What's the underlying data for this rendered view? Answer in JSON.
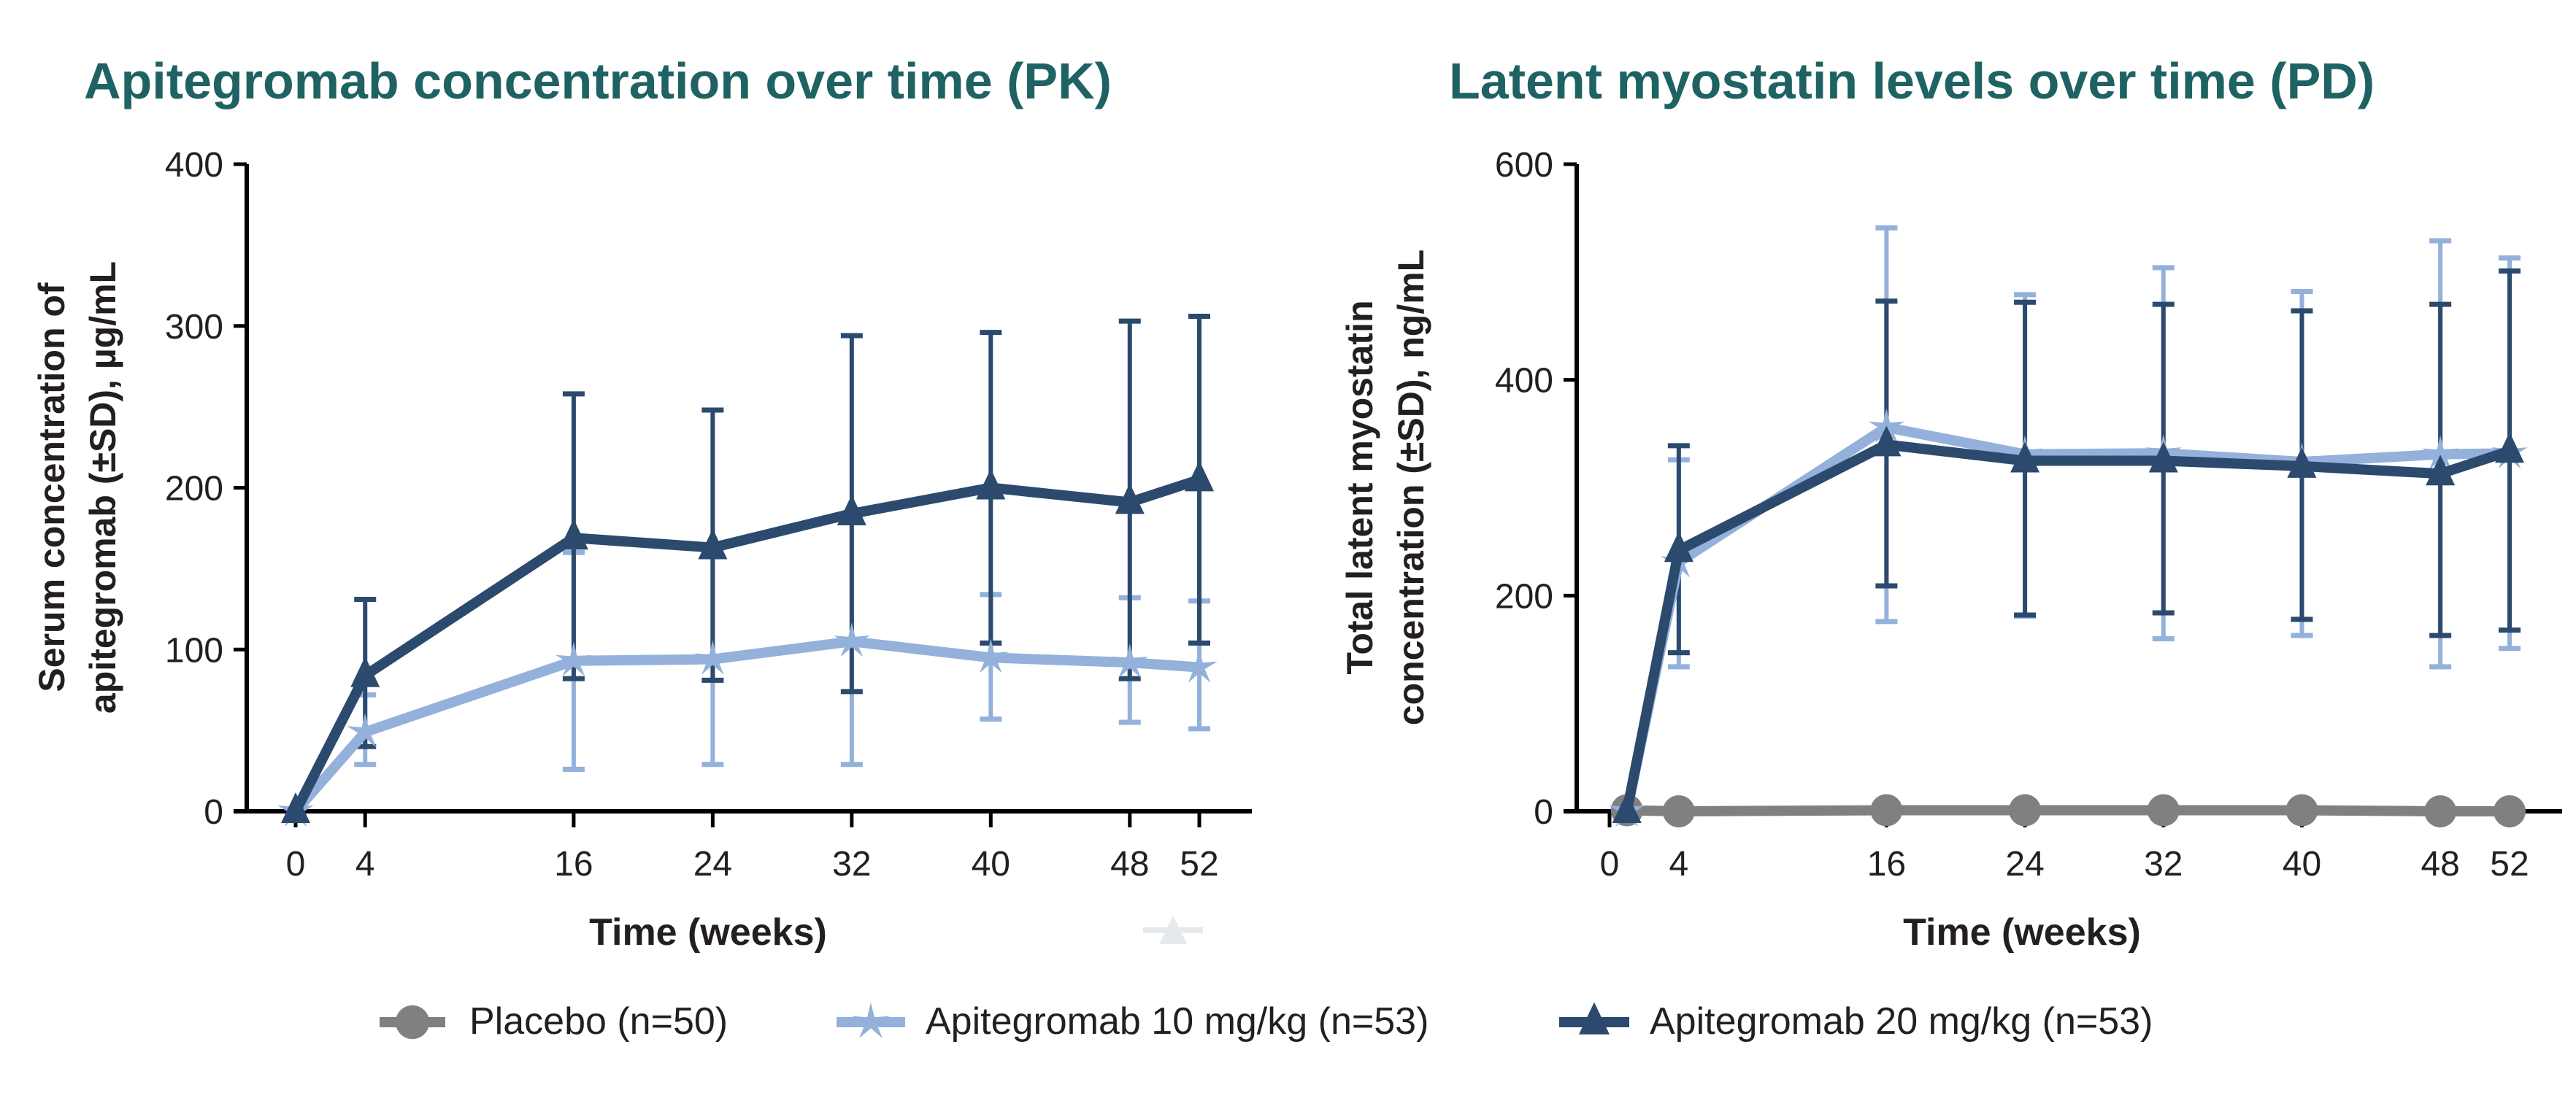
{
  "chart_data": [
    {
      "type": "line",
      "title": "Apitegromab concentration over time (PK)",
      "xlabel": "Time (weeks)",
      "ylabel": [
        "Serum concentration of",
        "apitegromab (±SD), µg/mL"
      ],
      "xticks": [
        0,
        4,
        16,
        24,
        32,
        40,
        48,
        52
      ],
      "yticks": [
        0,
        100,
        200,
        300,
        400
      ],
      "xlim": [
        0,
        52
      ],
      "ylim": [
        0,
        400
      ],
      "grid": false,
      "series": [
        {
          "name": "Apitegromab 10 mg/kg (n=53)",
          "key": "dose10",
          "x": [
            0,
            4,
            16,
            24,
            32,
            40,
            48,
            52
          ],
          "y": [
            0,
            49,
            93,
            94,
            105,
            95,
            92,
            89
          ],
          "err_upper": [
            0,
            72,
            160,
            160,
            182,
            134,
            132,
            130
          ],
          "err_lower": [
            0,
            29,
            26,
            29,
            29,
            57,
            55,
            51
          ]
        },
        {
          "name": "Apitegromab 20 mg/kg (n=53)",
          "key": "dose20",
          "x": [
            0,
            4,
            16,
            24,
            32,
            40,
            48,
            52
          ],
          "y": [
            0,
            84,
            169,
            163,
            184,
            200,
            191,
            205
          ],
          "err_upper": [
            0,
            131,
            258,
            248,
            294,
            296,
            303,
            306
          ],
          "err_lower": [
            0,
            40,
            82,
            81,
            74,
            104,
            82,
            104
          ]
        }
      ]
    },
    {
      "type": "line",
      "title": "Latent myostatin levels over time (PD)",
      "xlabel": "Time (weeks)",
      "ylabel": [
        "Total latent myostatin",
        "concentration (±SD), ng/mL"
      ],
      "xticks": [
        0,
        4,
        16,
        24,
        32,
        40,
        48,
        52
      ],
      "yticks": [
        0,
        200,
        400,
        600
      ],
      "xlim": [
        0,
        52
      ],
      "ylim": [
        0,
        600
      ],
      "grid": false,
      "series": [
        {
          "name": "Apitegromab 10 mg/kg (n=53)",
          "key": "dose10",
          "x": [
            1,
            4,
            16,
            24,
            32,
            40,
            48,
            52
          ],
          "y": [
            0,
            231,
            356,
            331,
            332,
            324,
            331,
            332
          ],
          "err_upper": [
            null,
            326,
            541,
            479,
            504,
            482,
            529,
            513
          ],
          "err_lower": [
            null,
            134,
            176,
            181,
            160,
            163,
            134,
            151
          ]
        },
        {
          "name": "Apitegromab 20 mg/kg (n=53)",
          "key": "dose20",
          "x": [
            1,
            4,
            16,
            24,
            32,
            40,
            48,
            52
          ],
          "y": [
            0,
            242,
            340,
            325,
            325,
            320,
            313,
            334
          ],
          "err_upper": [
            null,
            339,
            473,
            472,
            470,
            464,
            470,
            501
          ],
          "err_lower": [
            null,
            147,
            209,
            182,
            184,
            178,
            163,
            168
          ]
        },
        {
          "name": "Placebo (n=50)",
          "key": "placebo",
          "x": [
            1,
            4,
            16,
            24,
            32,
            40,
            48,
            52
          ],
          "y": [
            1,
            0,
            1,
            1,
            1,
            1,
            0,
            0
          ],
          "err_upper": [
            null,
            null,
            null,
            null,
            null,
            null,
            null,
            null
          ],
          "err_lower": [
            null,
            null,
            null,
            null,
            null,
            null,
            null,
            null
          ]
        }
      ]
    }
  ],
  "legend": {
    "placement": "bottom-center",
    "items": [
      {
        "key": "placebo",
        "label": "Placebo (n=50)",
        "marker": "circle-icon"
      },
      {
        "key": "dose10",
        "label": "Apitegromab 10 mg/kg (n=53)",
        "marker": "star-icon"
      },
      {
        "key": "dose20",
        "label": "Apitegromab 20 mg/kg (n=53)",
        "marker": "triangle-icon"
      }
    ]
  },
  "colors": {
    "placebo": "#808080",
    "dose10": "#93b1da",
    "dose20": "#2b4a6e",
    "title": "#1f6264",
    "axis": "#000000",
    "ghost_marker": "#e6e9ec"
  }
}
